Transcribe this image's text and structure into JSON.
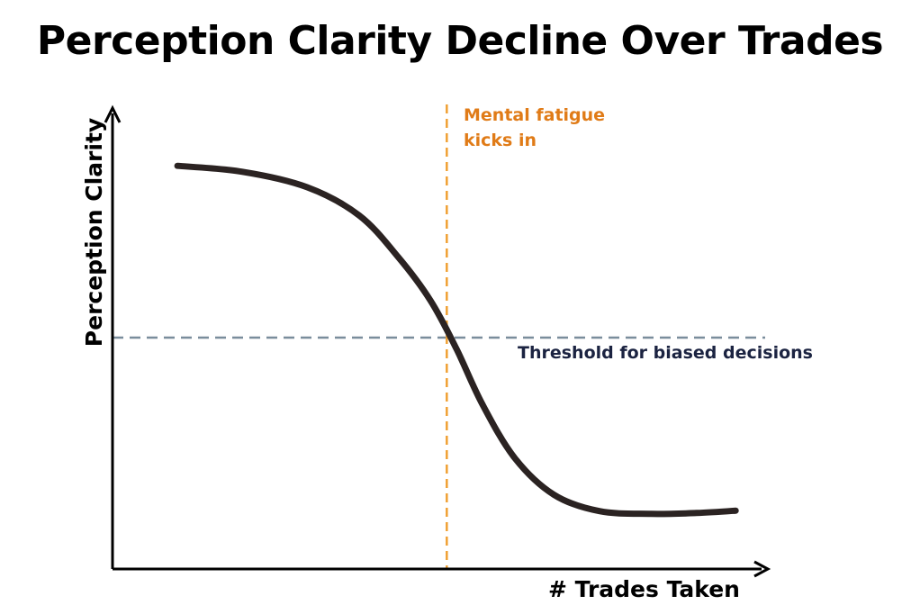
{
  "title": "Perception Clarity Decline Over Trades",
  "chart_data": {
    "type": "line",
    "xlabel": "# Trades Taken",
    "ylabel": "Perception Clarity",
    "xlim": [
      0,
      100
    ],
    "ylim": [
      0,
      100
    ],
    "grid": false,
    "legend": "none",
    "series": [
      {
        "color": "#2B2322",
        "x": [
          10,
          20,
          30,
          38,
          44,
          49,
          53,
          57,
          62,
          68,
          75,
          83,
          90,
          96
        ],
        "y": [
          88.5,
          87.2,
          83.8,
          77.6,
          68.5,
          58.9,
          48.3,
          36.1,
          24.3,
          16.3,
          12.7,
          12.1,
          12.3,
          12.8
        ]
      }
    ],
    "annotations": {
      "vline": {
        "x": 51.5,
        "color": "#F0A033",
        "text_color": "#E07B17",
        "label_lines": [
          "Mental fatigue",
          "kicks in"
        ]
      },
      "hline": {
        "y": 50.8,
        "color": "#7A8D9C",
        "text_color": "#1B2341",
        "label": "Threshold for biased decisions"
      }
    }
  }
}
